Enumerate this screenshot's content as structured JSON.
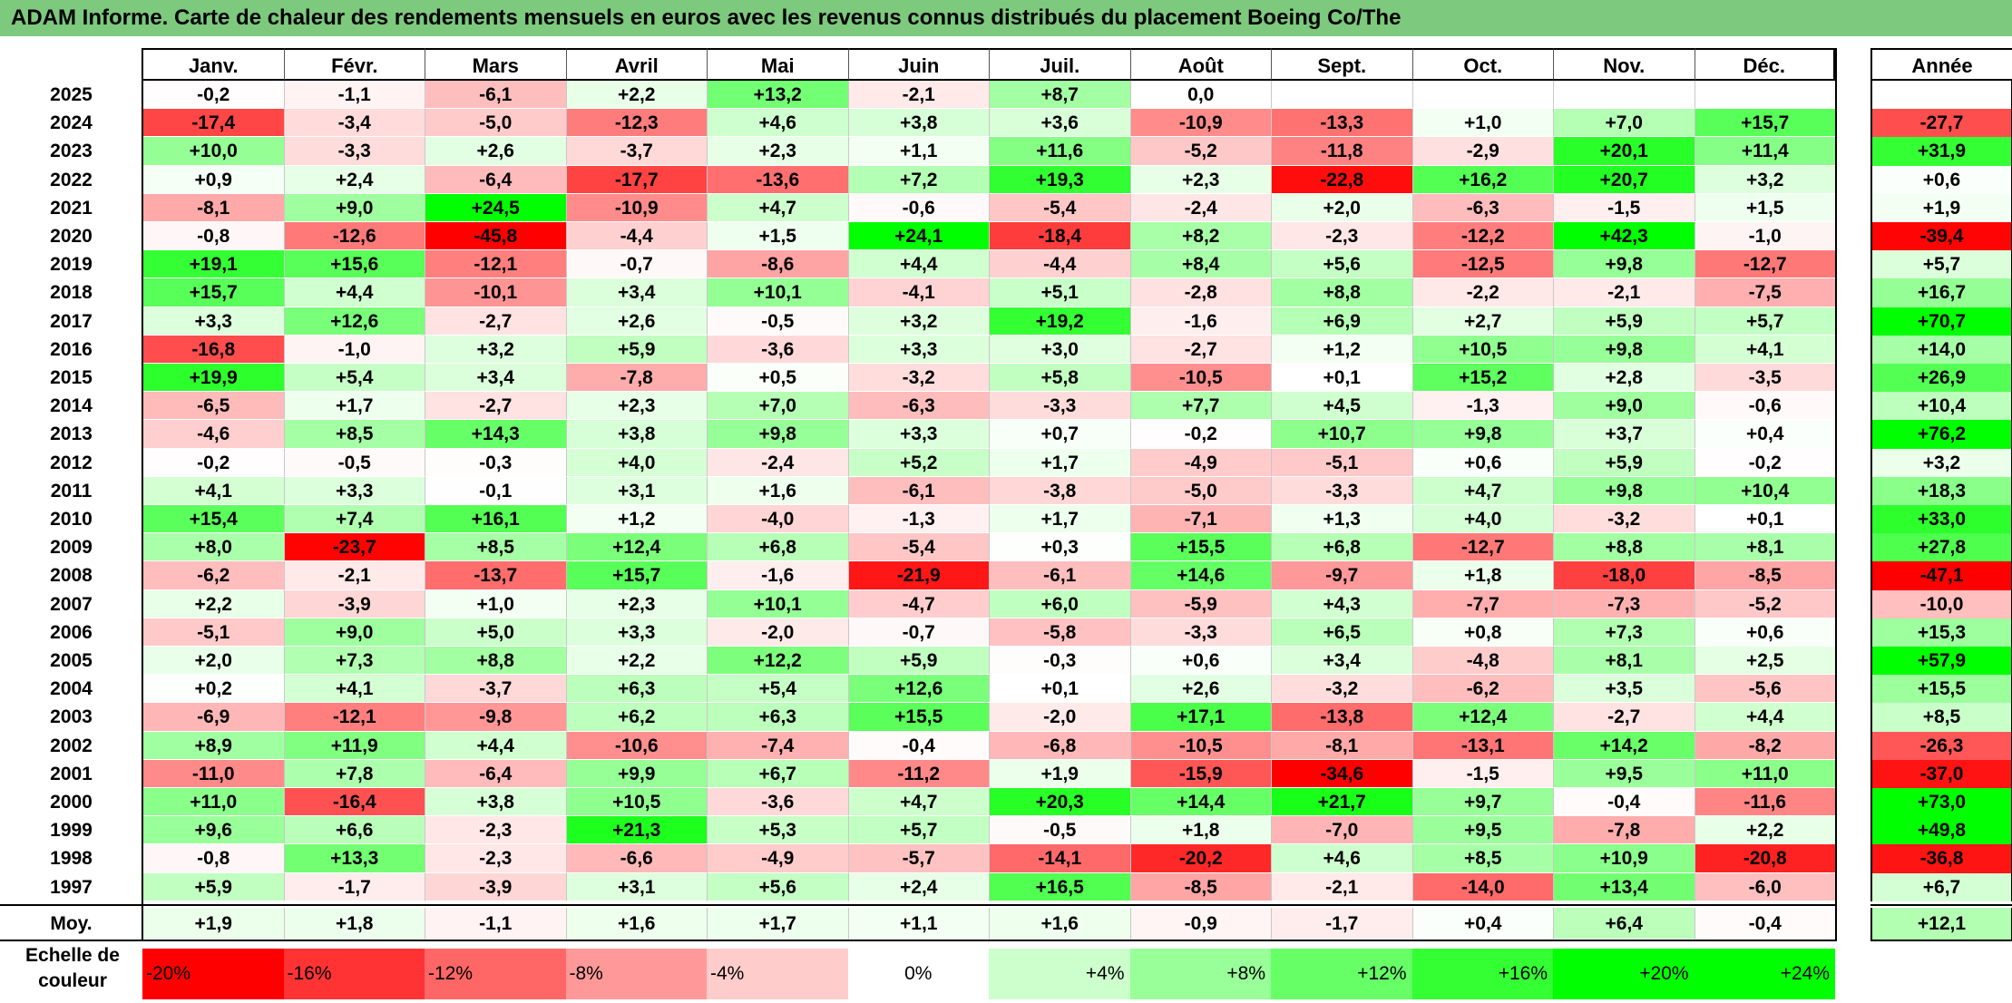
{
  "title": "ADAM Informe. Carte de chaleur des rendements mensuels en euros avec les revenus connus distribués du placement Boeing Co/The",
  "chart_data": {
    "type": "heatmap",
    "columns": [
      "Janv.",
      "Févr.",
      "Mars",
      "Avril",
      "Mai",
      "Juin",
      "Juil.",
      "Août",
      "Sept.",
      "Oct.",
      "Nov.",
      "Déc."
    ],
    "year_header": "Année",
    "rows": [
      {
        "label": "2025",
        "values": [
          -0.2,
          -1.1,
          -6.1,
          2.2,
          13.2,
          -2.1,
          8.7,
          0.0,
          null,
          null,
          null,
          null
        ],
        "year": null
      },
      {
        "label": "2024",
        "values": [
          -17.4,
          -3.4,
          -5.0,
          -12.3,
          4.6,
          3.8,
          3.6,
          -10.9,
          -13.3,
          1.0,
          7.0,
          15.7
        ],
        "year": -27.7
      },
      {
        "label": "2023",
        "values": [
          10.0,
          -3.3,
          2.6,
          -3.7,
          2.3,
          1.1,
          11.6,
          -5.2,
          -11.8,
          -2.9,
          20.1,
          11.4
        ],
        "year": 31.9
      },
      {
        "label": "2022",
        "values": [
          0.9,
          2.4,
          -6.4,
          -17.7,
          -13.6,
          7.2,
          19.3,
          2.3,
          -22.8,
          16.2,
          20.7,
          3.2
        ],
        "year": 0.6
      },
      {
        "label": "2021",
        "values": [
          -8.1,
          9.0,
          24.5,
          -10.9,
          4.7,
          -0.6,
          -5.4,
          -2.4,
          2.0,
          -6.3,
          -1.5,
          1.5
        ],
        "year": 1.9
      },
      {
        "label": "2020",
        "values": [
          -0.8,
          -12.6,
          -45.8,
          -4.4,
          1.5,
          24.1,
          -18.4,
          8.2,
          -2.3,
          -12.2,
          42.3,
          -1.0
        ],
        "year": -39.4
      },
      {
        "label": "2019",
        "values": [
          19.1,
          15.6,
          -12.1,
          -0.7,
          -8.6,
          4.4,
          -4.4,
          8.4,
          5.6,
          -12.5,
          9.8,
          -12.7
        ],
        "year": 5.7
      },
      {
        "label": "2018",
        "values": [
          15.7,
          4.4,
          -10.1,
          3.4,
          10.1,
          -4.1,
          5.1,
          -2.8,
          8.8,
          -2.2,
          -2.1,
          -7.5
        ],
        "year": 16.7
      },
      {
        "label": "2017",
        "values": [
          3.3,
          12.6,
          -2.7,
          2.6,
          -0.5,
          3.2,
          19.2,
          -1.6,
          6.9,
          2.7,
          5.9,
          5.7
        ],
        "year": 70.7
      },
      {
        "label": "2016",
        "values": [
          -16.8,
          -1.0,
          3.2,
          5.9,
          -3.6,
          3.3,
          3.0,
          -2.7,
          1.2,
          10.5,
          9.8,
          4.1
        ],
        "year": 14.0
      },
      {
        "label": "2015",
        "values": [
          19.9,
          5.4,
          3.4,
          -7.8,
          0.5,
          -3.2,
          5.8,
          -10.5,
          0.1,
          15.2,
          2.8,
          -3.5
        ],
        "year": 26.9
      },
      {
        "label": "2014",
        "values": [
          -6.5,
          1.7,
          -2.7,
          2.3,
          7.0,
          -6.3,
          -3.3,
          7.7,
          4.5,
          -1.3,
          9.0,
          -0.6
        ],
        "year": 10.4
      },
      {
        "label": "2013",
        "values": [
          -4.6,
          8.5,
          14.3,
          3.8,
          9.8,
          3.3,
          0.7,
          -0.2,
          10.7,
          9.8,
          3.7,
          0.4
        ],
        "year": 76.2
      },
      {
        "label": "2012",
        "values": [
          -0.2,
          -0.5,
          -0.3,
          4.0,
          -2.4,
          5.2,
          1.7,
          -4.9,
          -5.1,
          0.6,
          5.9,
          -0.2
        ],
        "year": 3.2
      },
      {
        "label": "2011",
        "values": [
          4.1,
          3.3,
          -0.1,
          3.1,
          1.6,
          -6.1,
          -3.8,
          -5.0,
          -3.3,
          4.7,
          9.8,
          10.4
        ],
        "year": 18.3
      },
      {
        "label": "2010",
        "values": [
          15.4,
          7.4,
          16.1,
          1.2,
          -4.0,
          -1.3,
          1.7,
          -7.1,
          1.3,
          4.0,
          -3.2,
          0.1
        ],
        "year": 33.0
      },
      {
        "label": "2009",
        "values": [
          8.0,
          -23.7,
          8.5,
          12.4,
          6.8,
          -5.4,
          0.3,
          15.5,
          6.8,
          -12.7,
          8.8,
          8.1
        ],
        "year": 27.8
      },
      {
        "label": "2008",
        "values": [
          -6.2,
          -2.1,
          -13.7,
          15.7,
          -1.6,
          -21.9,
          -6.1,
          14.6,
          -9.7,
          1.8,
          -18.0,
          -8.5
        ],
        "year": -47.1
      },
      {
        "label": "2007",
        "values": [
          2.2,
          -3.9,
          1.0,
          2.3,
          10.1,
          -4.7,
          6.0,
          -5.9,
          4.3,
          -7.7,
          -7.3,
          -5.2
        ],
        "year": -10.0
      },
      {
        "label": "2006",
        "values": [
          -5.1,
          9.0,
          5.0,
          3.3,
          -2.0,
          -0.7,
          -5.8,
          -3.3,
          6.5,
          0.8,
          7.3,
          0.6
        ],
        "year": 15.3
      },
      {
        "label": "2005",
        "values": [
          2.0,
          7.3,
          8.8,
          2.2,
          12.2,
          5.9,
          -0.3,
          0.6,
          3.4,
          -4.8,
          8.1,
          2.5
        ],
        "year": 57.9
      },
      {
        "label": "2004",
        "values": [
          0.2,
          4.1,
          -3.7,
          6.3,
          5.4,
          12.6,
          0.1,
          2.6,
          -3.2,
          -6.2,
          3.5,
          -5.6
        ],
        "year": 15.5
      },
      {
        "label": "2003",
        "values": [
          -6.9,
          -12.1,
          -9.8,
          6.2,
          6.3,
          15.5,
          -2.0,
          17.1,
          -13.8,
          12.4,
          -2.7,
          4.4
        ],
        "year": 8.5
      },
      {
        "label": "2002",
        "values": [
          8.9,
          11.9,
          4.4,
          -10.6,
          -7.4,
          -0.4,
          -6.8,
          -10.5,
          -8.1,
          -13.1,
          14.2,
          -8.2
        ],
        "year": -26.3
      },
      {
        "label": "2001",
        "values": [
          -11.0,
          7.8,
          -6.4,
          9.9,
          6.7,
          -11.2,
          1.9,
          -15.9,
          -34.6,
          -1.5,
          9.5,
          11.0
        ],
        "year": -37.0
      },
      {
        "label": "2000",
        "values": [
          11.0,
          -16.4,
          3.8,
          10.5,
          -3.6,
          4.7,
          20.3,
          14.4,
          21.7,
          9.7,
          -0.4,
          -11.6
        ],
        "year": 73.0
      },
      {
        "label": "1999",
        "values": [
          9.6,
          6.6,
          -2.3,
          21.3,
          5.3,
          5.7,
          -0.5,
          1.8,
          -7.0,
          9.5,
          -7.8,
          2.2
        ],
        "year": 49.8
      },
      {
        "label": "1998",
        "values": [
          -0.8,
          13.3,
          -2.3,
          -6.6,
          -4.9,
          -5.7,
          -14.1,
          -20.2,
          4.6,
          8.5,
          10.9,
          -20.8
        ],
        "year": -36.8
      },
      {
        "label": "1997",
        "values": [
          5.9,
          -1.7,
          -3.9,
          3.1,
          5.6,
          2.4,
          16.5,
          -8.5,
          -2.1,
          -14.0,
          13.4,
          -6.0
        ],
        "year": 6.7
      }
    ],
    "average": {
      "label": "Moy.",
      "values": [
        1.9,
        1.8,
        -1.1,
        1.6,
        1.7,
        1.1,
        1.6,
        -0.9,
        -1.7,
        0.4,
        6.4,
        -0.4
      ],
      "year": 12.1
    },
    "scale_label_line1": "Echelle de",
    "scale_label_line2": "couleur",
    "scale": [
      "-20%",
      "-16%",
      "-12%",
      "-8%",
      "-4%",
      "0%",
      "+4%",
      "+8%",
      "+12%",
      "+16%",
      "+20%",
      "+24%"
    ],
    "scale_values": [
      -20,
      -16,
      -12,
      -8,
      -4,
      0,
      4,
      8,
      12,
      16,
      20,
      24
    ],
    "colors": {
      "negative": "#ff0000",
      "zero": "#ffffff",
      "positive": "#00ff00",
      "title_bar": "#7dc97d"
    }
  }
}
